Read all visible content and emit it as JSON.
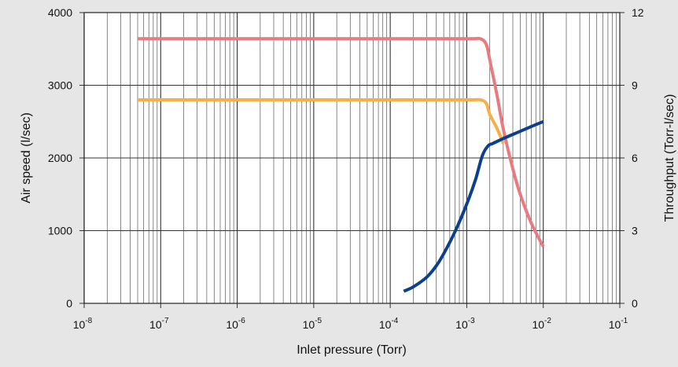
{
  "chart_data": {
    "type": "line",
    "title": "",
    "xlabel": "Inlet pressure (Torr)",
    "ylabel": "Air speed (l/sec)",
    "y2label": "Throughput (Torr-l/sec)",
    "x_scale": "log",
    "xlim": [
      1e-08,
      0.1
    ],
    "ylim": [
      0,
      4000
    ],
    "y2lim": [
      0,
      12
    ],
    "grid": true,
    "legend": "none",
    "x_ticks": [
      {
        "base": "10",
        "exp": "-8"
      },
      {
        "base": "10",
        "exp": "-7"
      },
      {
        "base": "10",
        "exp": "-6"
      },
      {
        "base": "10",
        "exp": "-5"
      },
      {
        "base": "10",
        "exp": "-4"
      },
      {
        "base": "10",
        "exp": "-3"
      },
      {
        "base": "10",
        "exp": "-2"
      },
      {
        "base": "10",
        "exp": "-1"
      }
    ],
    "y_ticks": [
      "0",
      "1000",
      "2000",
      "3000",
      "4000"
    ],
    "y2_ticks": [
      "0",
      "3",
      "6",
      "9",
      "12"
    ],
    "series": [
      {
        "axis": "left",
        "color": "#e87a80",
        "x": [
          5e-08,
          1e-07,
          1e-06,
          1e-05,
          0.0001,
          0.001,
          0.0015,
          0.0018,
          0.002,
          0.0025,
          0.003,
          0.004,
          0.005,
          0.007,
          0.01
        ],
        "y": [
          3640,
          3640,
          3640,
          3640,
          3640,
          3640,
          3640,
          3560,
          3350,
          2850,
          2400,
          1850,
          1500,
          1100,
          780
        ]
      },
      {
        "axis": "left",
        "color": "#f5b04a",
        "x": [
          5e-08,
          1e-07,
          1e-06,
          1e-05,
          0.0001,
          0.001,
          0.0015,
          0.0018,
          0.002,
          0.0025,
          0.003
        ],
        "y": [
          2800,
          2800,
          2800,
          2800,
          2800,
          2800,
          2800,
          2750,
          2600,
          2400,
          2200
        ]
      },
      {
        "axis": "right",
        "color": "#0d3f8f",
        "x": [
          0.00015,
          0.0002,
          0.0003,
          0.0004,
          0.0005,
          0.0007,
          0.001,
          0.0013,
          0.0016,
          0.0019,
          0.0022,
          0.003,
          0.005,
          0.007,
          0.01
        ],
        "y": [
          0.5,
          0.68,
          1.08,
          1.55,
          2.05,
          2.95,
          4.1,
          5.1,
          6.1,
          6.5,
          6.6,
          6.8,
          7.1,
          7.3,
          7.5
        ]
      }
    ]
  }
}
